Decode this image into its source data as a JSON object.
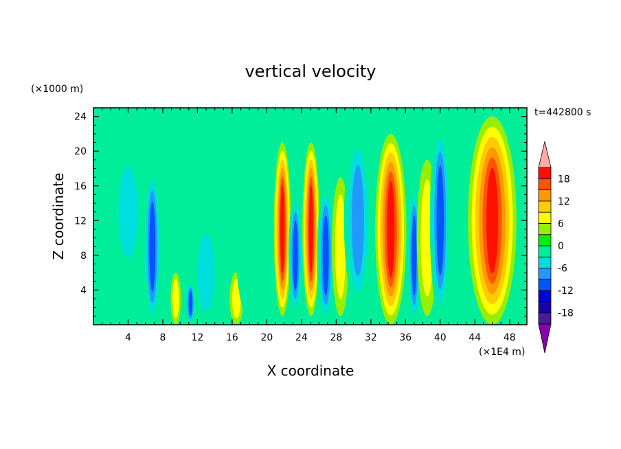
{
  "chart_data": {
    "type": "heatmap",
    "title": "vertical velocity",
    "time_label": "t=442800 s",
    "xlabel": "X coordinate",
    "ylabel": "Z coordinate",
    "x_unit": "(×1E4 m)",
    "y_unit": "(×1000 m)",
    "xlim": [
      0,
      50
    ],
    "ylim": [
      0,
      25
    ],
    "x_ticks": [
      4,
      8,
      12,
      16,
      20,
      24,
      28,
      32,
      36,
      40,
      44,
      48
    ],
    "y_ticks": [
      4,
      8,
      12,
      16,
      20,
      24
    ],
    "colorbar": {
      "tick_values": [
        18,
        12,
        6,
        0,
        -6,
        -12,
        -18
      ],
      "levels": [
        -21,
        -18,
        -15,
        -12,
        -9,
        -6,
        -3,
        0,
        3,
        6,
        9,
        12,
        15,
        18,
        21
      ],
      "colors": [
        "#8800aa",
        "#4a1a9a",
        "#1a00aa",
        "#0000d8",
        "#0055ff",
        "#2299ff",
        "#00dddd",
        "#00ee99",
        "#00ee00",
        "#99ee00",
        "#ffff00",
        "#ffcc00",
        "#ff9900",
        "#ff5500",
        "#ff1100",
        "#ffaaaa"
      ],
      "extend": "both"
    },
    "features": [
      {
        "x": 4.0,
        "z_center": 13,
        "z_half": 7,
        "width": 0.9,
        "value": -8
      },
      {
        "x": 6.8,
        "z_center": 9,
        "z_half": 9,
        "width": 0.5,
        "value": -13
      },
      {
        "x": 9.5,
        "z_center": 3,
        "z_half": 3,
        "width": 0.3,
        "value": 6
      },
      {
        "x": 11.2,
        "z_center": 2.5,
        "z_half": 2.5,
        "width": 0.3,
        "value": -12
      },
      {
        "x": 13.0,
        "z_center": 6,
        "z_half": 6,
        "width": 0.8,
        "value": -6
      },
      {
        "x": 16.5,
        "z_center": 3,
        "z_half": 3,
        "width": 0.4,
        "value": 6
      },
      {
        "x": 18.5,
        "z_center": 8,
        "z_half": 8,
        "width": 1.0,
        "value": -4
      },
      {
        "x": 21.8,
        "z_center": 11,
        "z_half": 10,
        "width": 0.5,
        "value": 18
      },
      {
        "x": 23.3,
        "z_center": 8,
        "z_half": 7,
        "width": 0.4,
        "value": -12
      },
      {
        "x": 25.1,
        "z_center": 11,
        "z_half": 10,
        "width": 0.5,
        "value": 18
      },
      {
        "x": 26.8,
        "z_center": 8,
        "z_half": 8,
        "width": 0.5,
        "value": -14
      },
      {
        "x": 28.5,
        "z_center": 9,
        "z_half": 8,
        "width": 0.5,
        "value": 8
      },
      {
        "x": 30.5,
        "z_center": 12,
        "z_half": 10,
        "width": 0.8,
        "value": -11
      },
      {
        "x": 34.3,
        "z_center": 11,
        "z_half": 11,
        "width": 0.9,
        "value": 18
      },
      {
        "x": 37.0,
        "z_center": 8,
        "z_half": 8,
        "width": 0.4,
        "value": -14
      },
      {
        "x": 38.5,
        "z_center": 10,
        "z_half": 9,
        "width": 0.6,
        "value": 8
      },
      {
        "x": 40.0,
        "z_center": 12,
        "z_half": 11,
        "width": 0.6,
        "value": -14
      },
      {
        "x": 46.0,
        "z_center": 12,
        "z_half": 12,
        "width": 1.4,
        "value": 20
      }
    ]
  }
}
